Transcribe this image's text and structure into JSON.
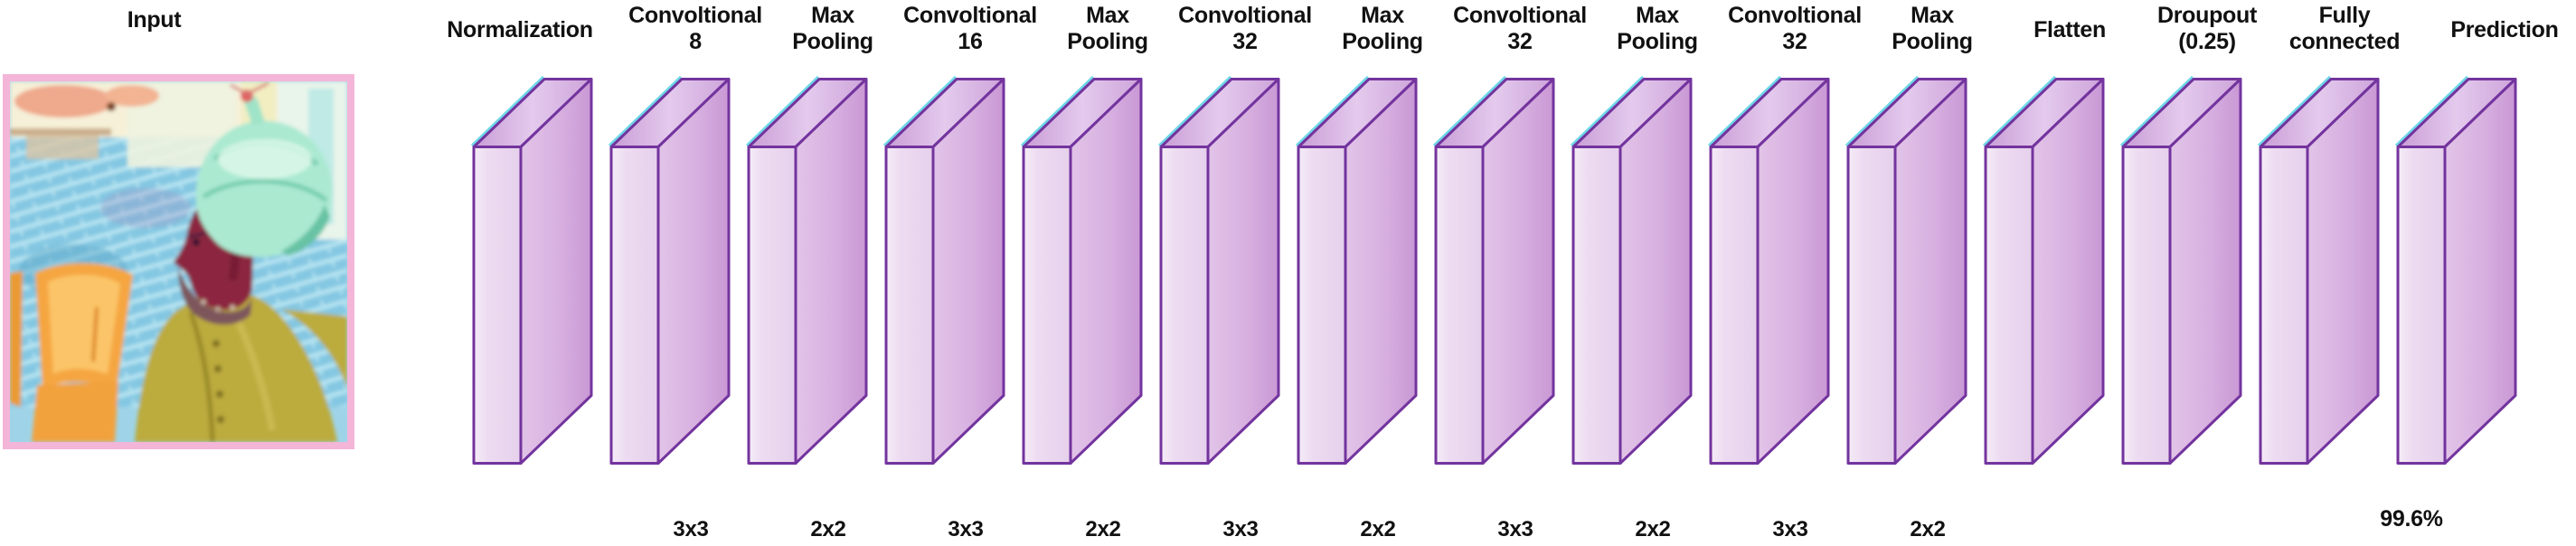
{
  "figure": {
    "input_label": "Input",
    "prediction_accuracy": "99.6%"
  },
  "layers": [
    {
      "line1": "Normalization",
      "line2": "",
      "kernel": ""
    },
    {
      "line1": "Convoltional",
      "line2": "8",
      "kernel": "3x3"
    },
    {
      "line1": "Max",
      "line2": "Pooling",
      "kernel": "2x2"
    },
    {
      "line1": "Convoltional",
      "line2": "16",
      "kernel": "3x3"
    },
    {
      "line1": "Max",
      "line2": "Pooling",
      "kernel": "2x2"
    },
    {
      "line1": "Convoltional",
      "line2": "32",
      "kernel": "3x3"
    },
    {
      "line1": "Max",
      "line2": "Pooling",
      "kernel": "2x2"
    },
    {
      "line1": "Convoltional",
      "line2": "32",
      "kernel": "3x3"
    },
    {
      "line1": "Max",
      "line2": "Pooling",
      "kernel": "2x2"
    },
    {
      "line1": "Convoltional",
      "line2": "32",
      "kernel": "3x3"
    },
    {
      "line1": "Max",
      "line2": "Pooling",
      "kernel": "2x2"
    },
    {
      "line1": "Flatten",
      "line2": "",
      "kernel": ""
    },
    {
      "line1": "Droupout",
      "line2": "(0.25)",
      "kernel": ""
    },
    {
      "line1": "Fully",
      "line2": "connected",
      "kernel": ""
    },
    {
      "line1": "Prediction",
      "line2": "",
      "kernel": "",
      "result": "99.6%"
    }
  ],
  "colors": {
    "slab_outline": "#73349e",
    "slab_front": "#ecdaf0",
    "slab_side": "#d8b4e0",
    "slab_top": "#d2abde",
    "input_frame_pink": "#f3b5d8",
    "label_text": "#111111"
  }
}
